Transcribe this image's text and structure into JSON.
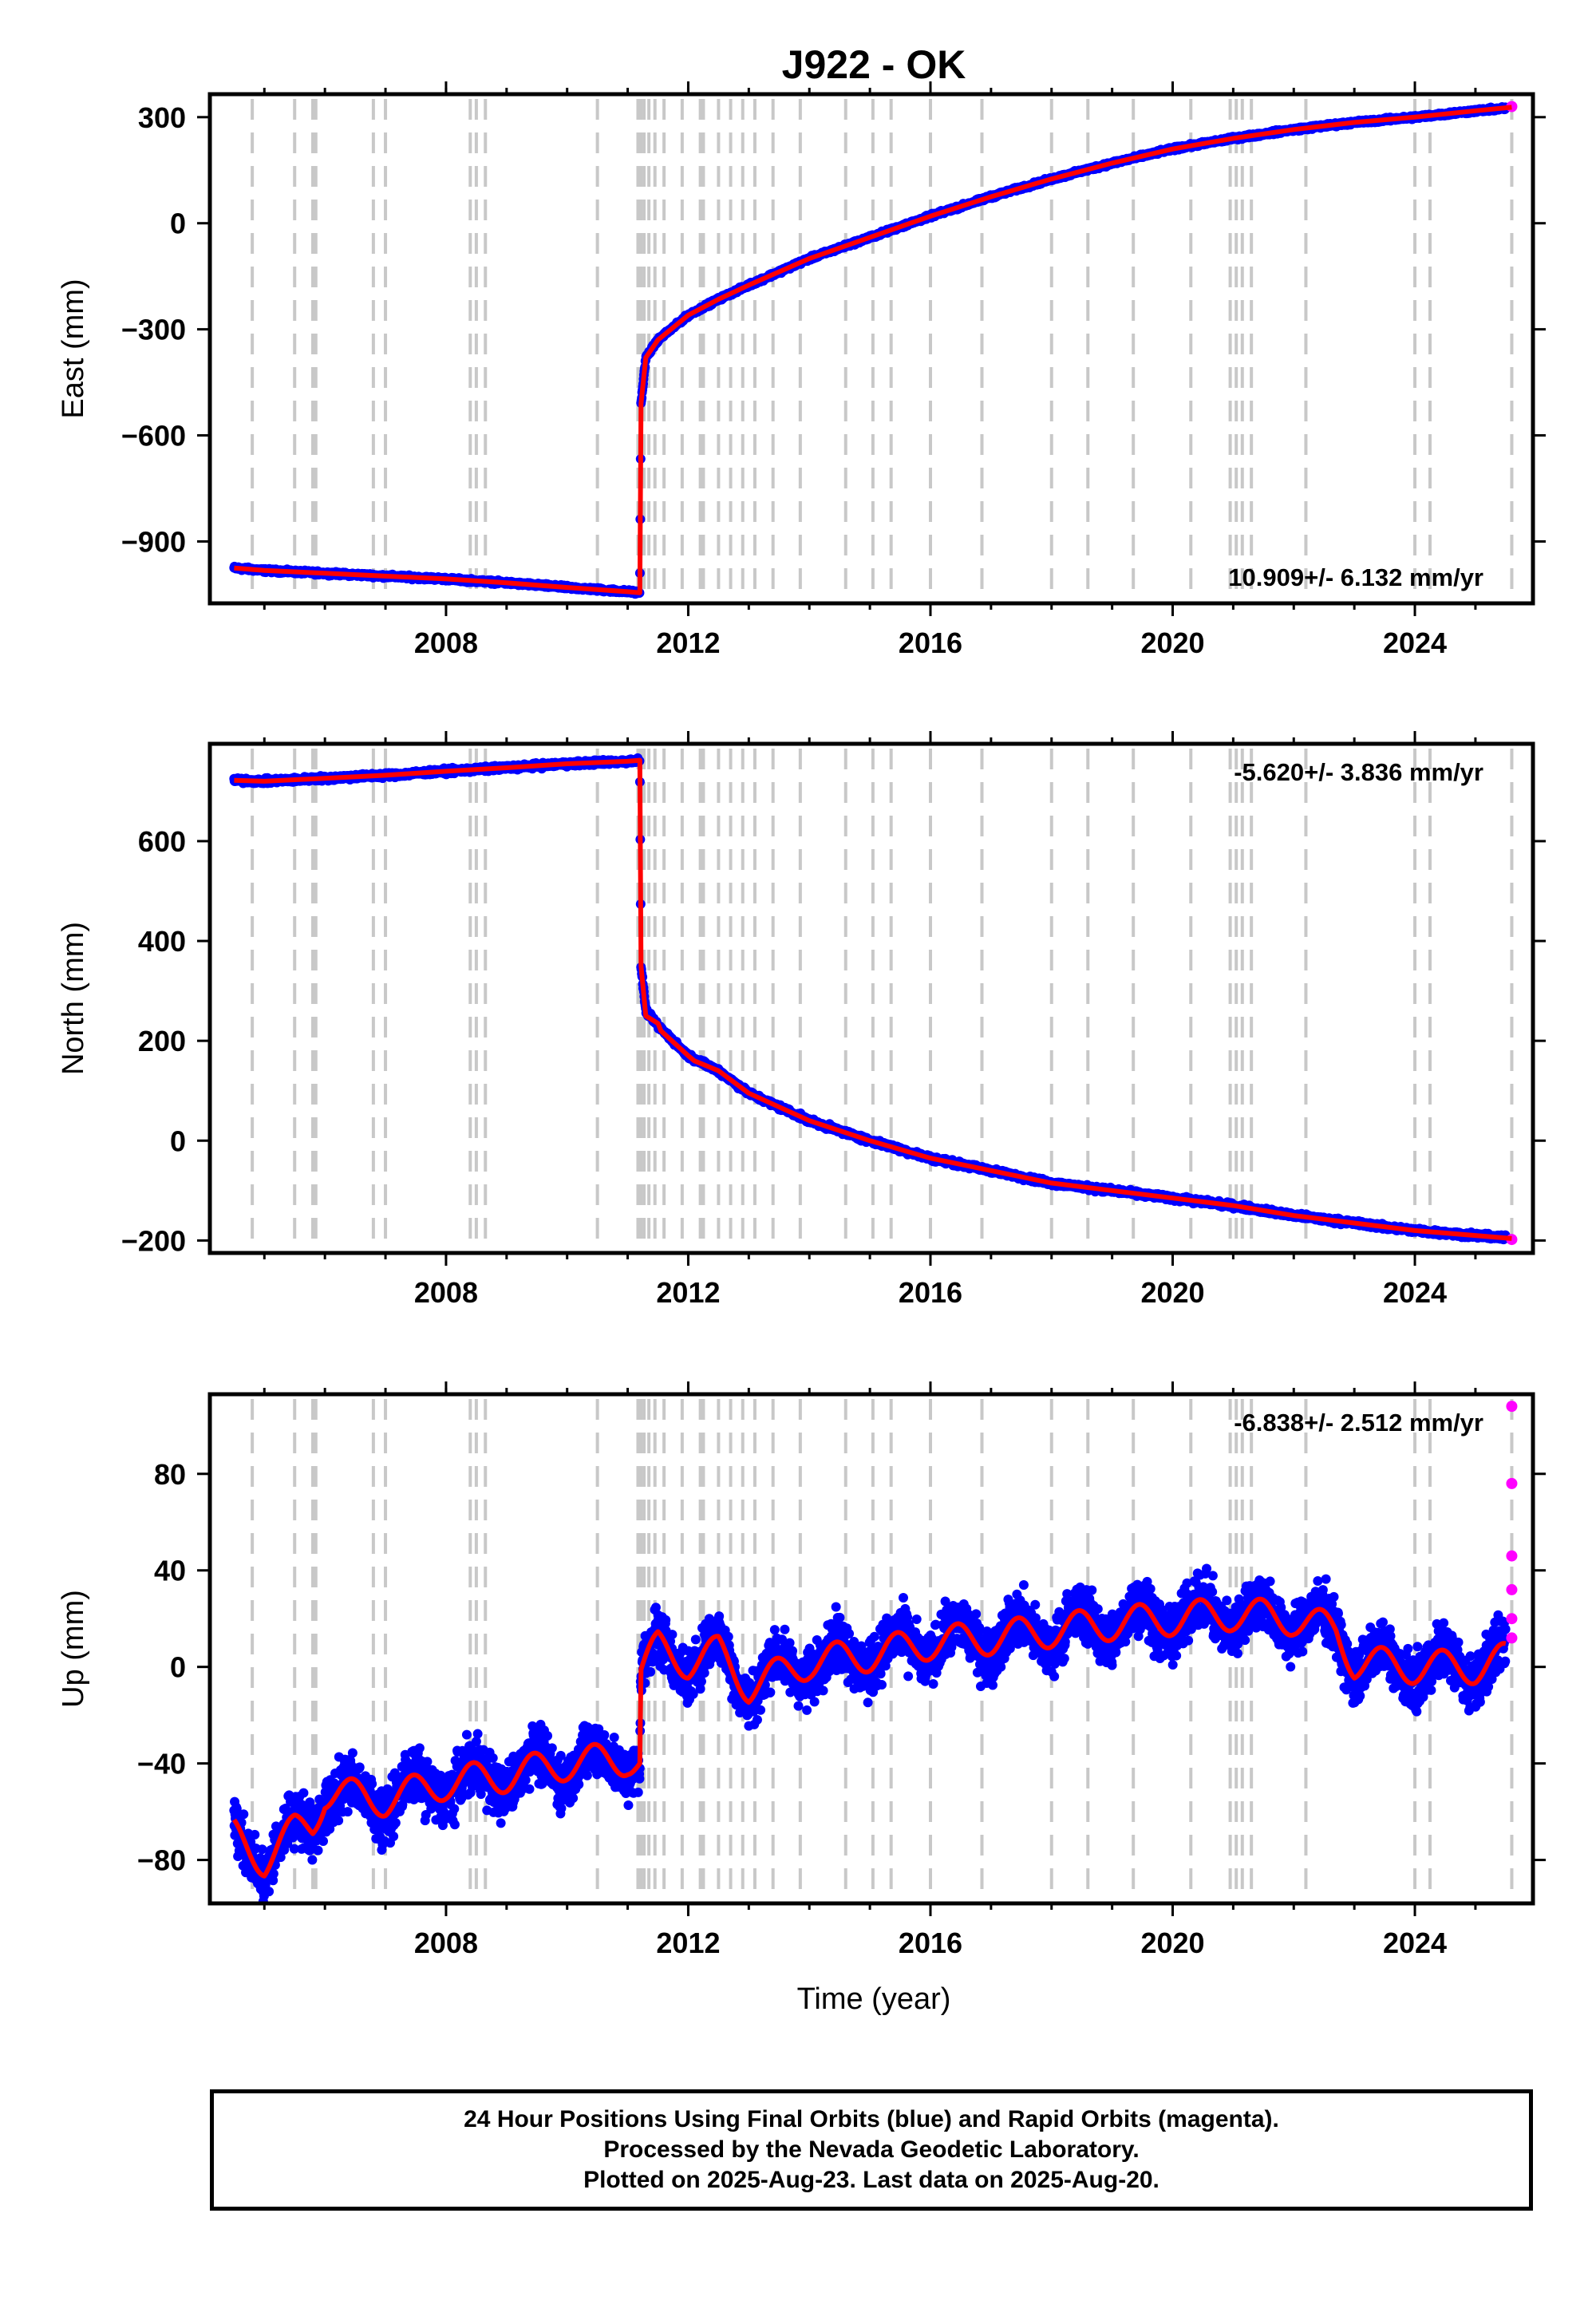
{
  "title": "J922 - OK",
  "xlabel": "Time (year)",
  "footer": {
    "line1": "24 Hour Positions Using Final Orbits (blue) and Rapid Orbits (magenta).",
    "line2": "Processed by the Nevada Geodetic Laboratory.",
    "line3": "Plotted on 2025-Aug-23. Last data on 2025-Aug-20."
  },
  "colors": {
    "final_orbits": "#0000ff",
    "rapid_orbits": "#ff00ff",
    "model": "#ff0000",
    "event_lines": "#c8c8c8"
  },
  "chart_data": [
    {
      "type": "scatter",
      "ylabel": "East (mm)",
      "rate_text": "10.909+/- 6.132 mm/yr",
      "xlim": [
        2004.1,
        2025.95
      ],
      "ylim": [
        -1075,
        365
      ],
      "xticks": [
        2008,
        2012,
        2016,
        2020,
        2024
      ],
      "yticks": [
        -900,
        -600,
        -300,
        0,
        300
      ],
      "grid": false,
      "final_orbits": [
        [
          2004.5,
          -975
        ],
        [
          2005.0,
          -982
        ],
        [
          2006.0,
          -990
        ],
        [
          2007.0,
          -998
        ],
        [
          2008.0,
          -1006
        ],
        [
          2009.0,
          -1017
        ],
        [
          2010.0,
          -1030
        ],
        [
          2011.0,
          -1042
        ],
        [
          2011.2,
          -1045
        ],
        [
          2011.22,
          -510
        ],
        [
          2011.3,
          -380
        ],
        [
          2011.5,
          -330
        ],
        [
          2012.0,
          -260
        ],
        [
          2012.5,
          -215
        ],
        [
          2013.0,
          -175
        ],
        [
          2014.0,
          -100
        ],
        [
          2015.0,
          -40
        ],
        [
          2016.0,
          20
        ],
        [
          2017.0,
          75
        ],
        [
          2018.0,
          125
        ],
        [
          2019.0,
          170
        ],
        [
          2020.0,
          210
        ],
        [
          2021.0,
          240
        ],
        [
          2022.0,
          265
        ],
        [
          2023.0,
          285
        ],
        [
          2024.0,
          300
        ],
        [
          2025.0,
          318
        ],
        [
          2025.5,
          325
        ]
      ],
      "rapid_orbits": [
        [
          2025.6,
          330
        ]
      ],
      "model": [
        [
          2004.5,
          -975
        ],
        [
          2005.0,
          -982
        ],
        [
          2006.0,
          -990
        ],
        [
          2007.0,
          -998
        ],
        [
          2008.0,
          -1006
        ],
        [
          2009.0,
          -1017
        ],
        [
          2010.0,
          -1030
        ],
        [
          2011.0,
          -1042
        ],
        [
          2011.2,
          -1045
        ],
        [
          2011.22,
          -510
        ],
        [
          2011.3,
          -380
        ],
        [
          2011.5,
          -330
        ],
        [
          2012.0,
          -260
        ],
        [
          2012.5,
          -215
        ],
        [
          2013.0,
          -175
        ],
        [
          2014.0,
          -100
        ],
        [
          2015.0,
          -40
        ],
        [
          2016.0,
          20
        ],
        [
          2017.0,
          75
        ],
        [
          2018.0,
          125
        ],
        [
          2019.0,
          170
        ],
        [
          2020.0,
          210
        ],
        [
          2021.0,
          240
        ],
        [
          2022.0,
          265
        ],
        [
          2023.0,
          285
        ],
        [
          2024.0,
          300
        ],
        [
          2025.0,
          318
        ],
        [
          2025.6,
          328
        ]
      ]
    },
    {
      "type": "scatter",
      "ylabel": "North (mm)",
      "rate_text": "-5.620+/- 3.836 mm/yr",
      "xlim": [
        2004.1,
        2025.95
      ],
      "ylim": [
        -225,
        795
      ],
      "xticks": [
        2008,
        2012,
        2016,
        2020,
        2024
      ],
      "yticks": [
        -200,
        0,
        200,
        400,
        600
      ],
      "grid": false,
      "final_orbits": [
        [
          2004.5,
          722
        ],
        [
          2005.0,
          720
        ],
        [
          2006.0,
          726
        ],
        [
          2007.0,
          732
        ],
        [
          2008.0,
          740
        ],
        [
          2009.0,
          747
        ],
        [
          2010.0,
          755
        ],
        [
          2011.0,
          760
        ],
        [
          2011.2,
          762
        ],
        [
          2011.22,
          350
        ],
        [
          2011.3,
          260
        ],
        [
          2011.5,
          230
        ],
        [
          2012.0,
          170
        ],
        [
          2012.5,
          140
        ],
        [
          2013.0,
          95
        ],
        [
          2014.0,
          40
        ],
        [
          2015.0,
          0
        ],
        [
          2016.0,
          -35
        ],
        [
          2017.0,
          -60
        ],
        [
          2018.0,
          -85
        ],
        [
          2019.0,
          -100
        ],
        [
          2020.0,
          -115
        ],
        [
          2021.0,
          -130
        ],
        [
          2022.0,
          -150
        ],
        [
          2023.0,
          -165
        ],
        [
          2024.0,
          -180
        ],
        [
          2025.0,
          -190
        ],
        [
          2025.5,
          -195
        ]
      ],
      "rapid_orbits": [
        [
          2025.6,
          -198
        ]
      ],
      "model": [
        [
          2004.5,
          722
        ],
        [
          2005.0,
          720
        ],
        [
          2006.0,
          726
        ],
        [
          2007.0,
          732
        ],
        [
          2008.0,
          740
        ],
        [
          2009.0,
          747
        ],
        [
          2010.0,
          755
        ],
        [
          2011.0,
          760
        ],
        [
          2011.2,
          762
        ],
        [
          2011.22,
          350
        ],
        [
          2011.3,
          250
        ],
        [
          2011.5,
          235
        ],
        [
          2011.55,
          220
        ],
        [
          2012.0,
          170
        ],
        [
          2012.1,
          160
        ],
        [
          2012.5,
          140
        ],
        [
          2013.0,
          95
        ],
        [
          2014.0,
          40
        ],
        [
          2015.0,
          0
        ],
        [
          2016.0,
          -35
        ],
        [
          2017.0,
          -60
        ],
        [
          2018.0,
          -85
        ],
        [
          2019.0,
          -100
        ],
        [
          2020.0,
          -115
        ],
        [
          2021.0,
          -130
        ],
        [
          2022.0,
          -150
        ],
        [
          2023.0,
          -165
        ],
        [
          2024.0,
          -180
        ],
        [
          2025.0,
          -190
        ],
        [
          2025.6,
          -196
        ]
      ]
    },
    {
      "type": "scatter",
      "ylabel": "Up (mm)",
      "rate_text": "-6.838+/- 2.512 mm/yr",
      "xlim": [
        2004.1,
        2025.95
      ],
      "ylim": [
        -98,
        113
      ],
      "xticks": [
        2008,
        2012,
        2016,
        2020,
        2024
      ],
      "yticks": [
        -80,
        -40,
        0,
        40,
        80
      ],
      "grid": false,
      "final_orbits_envelope": {
        "scatter_amplitude_mm": 12,
        "seasonal_amplitude_mm": 7
      },
      "model": [
        [
          2004.5,
          -70
        ],
        [
          2004.8,
          -76
        ],
        [
          2005.0,
          -80
        ],
        [
          2005.5,
          -68
        ],
        [
          2005.8,
          -65
        ],
        [
          2006.0,
          -52
        ],
        [
          2007.0,
          -55
        ],
        [
          2008.0,
          -48
        ],
        [
          2009.0,
          -45
        ],
        [
          2010.0,
          -40
        ],
        [
          2011.0,
          -38
        ],
        [
          2011.2,
          -40
        ],
        [
          2011.22,
          -2
        ],
        [
          2011.5,
          8
        ],
        [
          2012.0,
          2
        ],
        [
          2012.5,
          6
        ],
        [
          2013.0,
          -8
        ],
        [
          2014.0,
          2
        ],
        [
          2015.0,
          5
        ],
        [
          2016.0,
          10
        ],
        [
          2017.0,
          12
        ],
        [
          2018.0,
          15
        ],
        [
          2019.0,
          18
        ],
        [
          2020.0,
          20
        ],
        [
          2021.0,
          22
        ],
        [
          2022.0,
          20
        ],
        [
          2022.7,
          15
        ],
        [
          2023.0,
          2
        ],
        [
          2024.0,
          0
        ],
        [
          2025.0,
          0
        ],
        [
          2025.5,
          3
        ]
      ],
      "rapid_orbits": [
        [
          2025.6,
          108
        ],
        [
          2025.6,
          76
        ],
        [
          2025.6,
          46
        ],
        [
          2025.6,
          32
        ],
        [
          2025.6,
          20
        ],
        [
          2025.6,
          12
        ]
      ]
    }
  ],
  "event_years": [
    2004.8,
    2005.5,
    2005.8,
    2005.85,
    2006.8,
    2007.0,
    2008.4,
    2008.5,
    2008.65,
    2010.5,
    2011.17,
    2011.22,
    2011.27,
    2011.35,
    2011.45,
    2011.6,
    2011.9,
    2012.2,
    2012.25,
    2012.5,
    2012.7,
    2012.9,
    2013.1,
    2013.4,
    2013.85,
    2014.6,
    2015.05,
    2015.35,
    2016.0,
    2016.85,
    2018.0,
    2018.6,
    2019.35,
    2020.3,
    2020.95,
    2021.05,
    2021.15,
    2021.3,
    2022.2,
    2024.0,
    2024.25,
    2025.6
  ]
}
